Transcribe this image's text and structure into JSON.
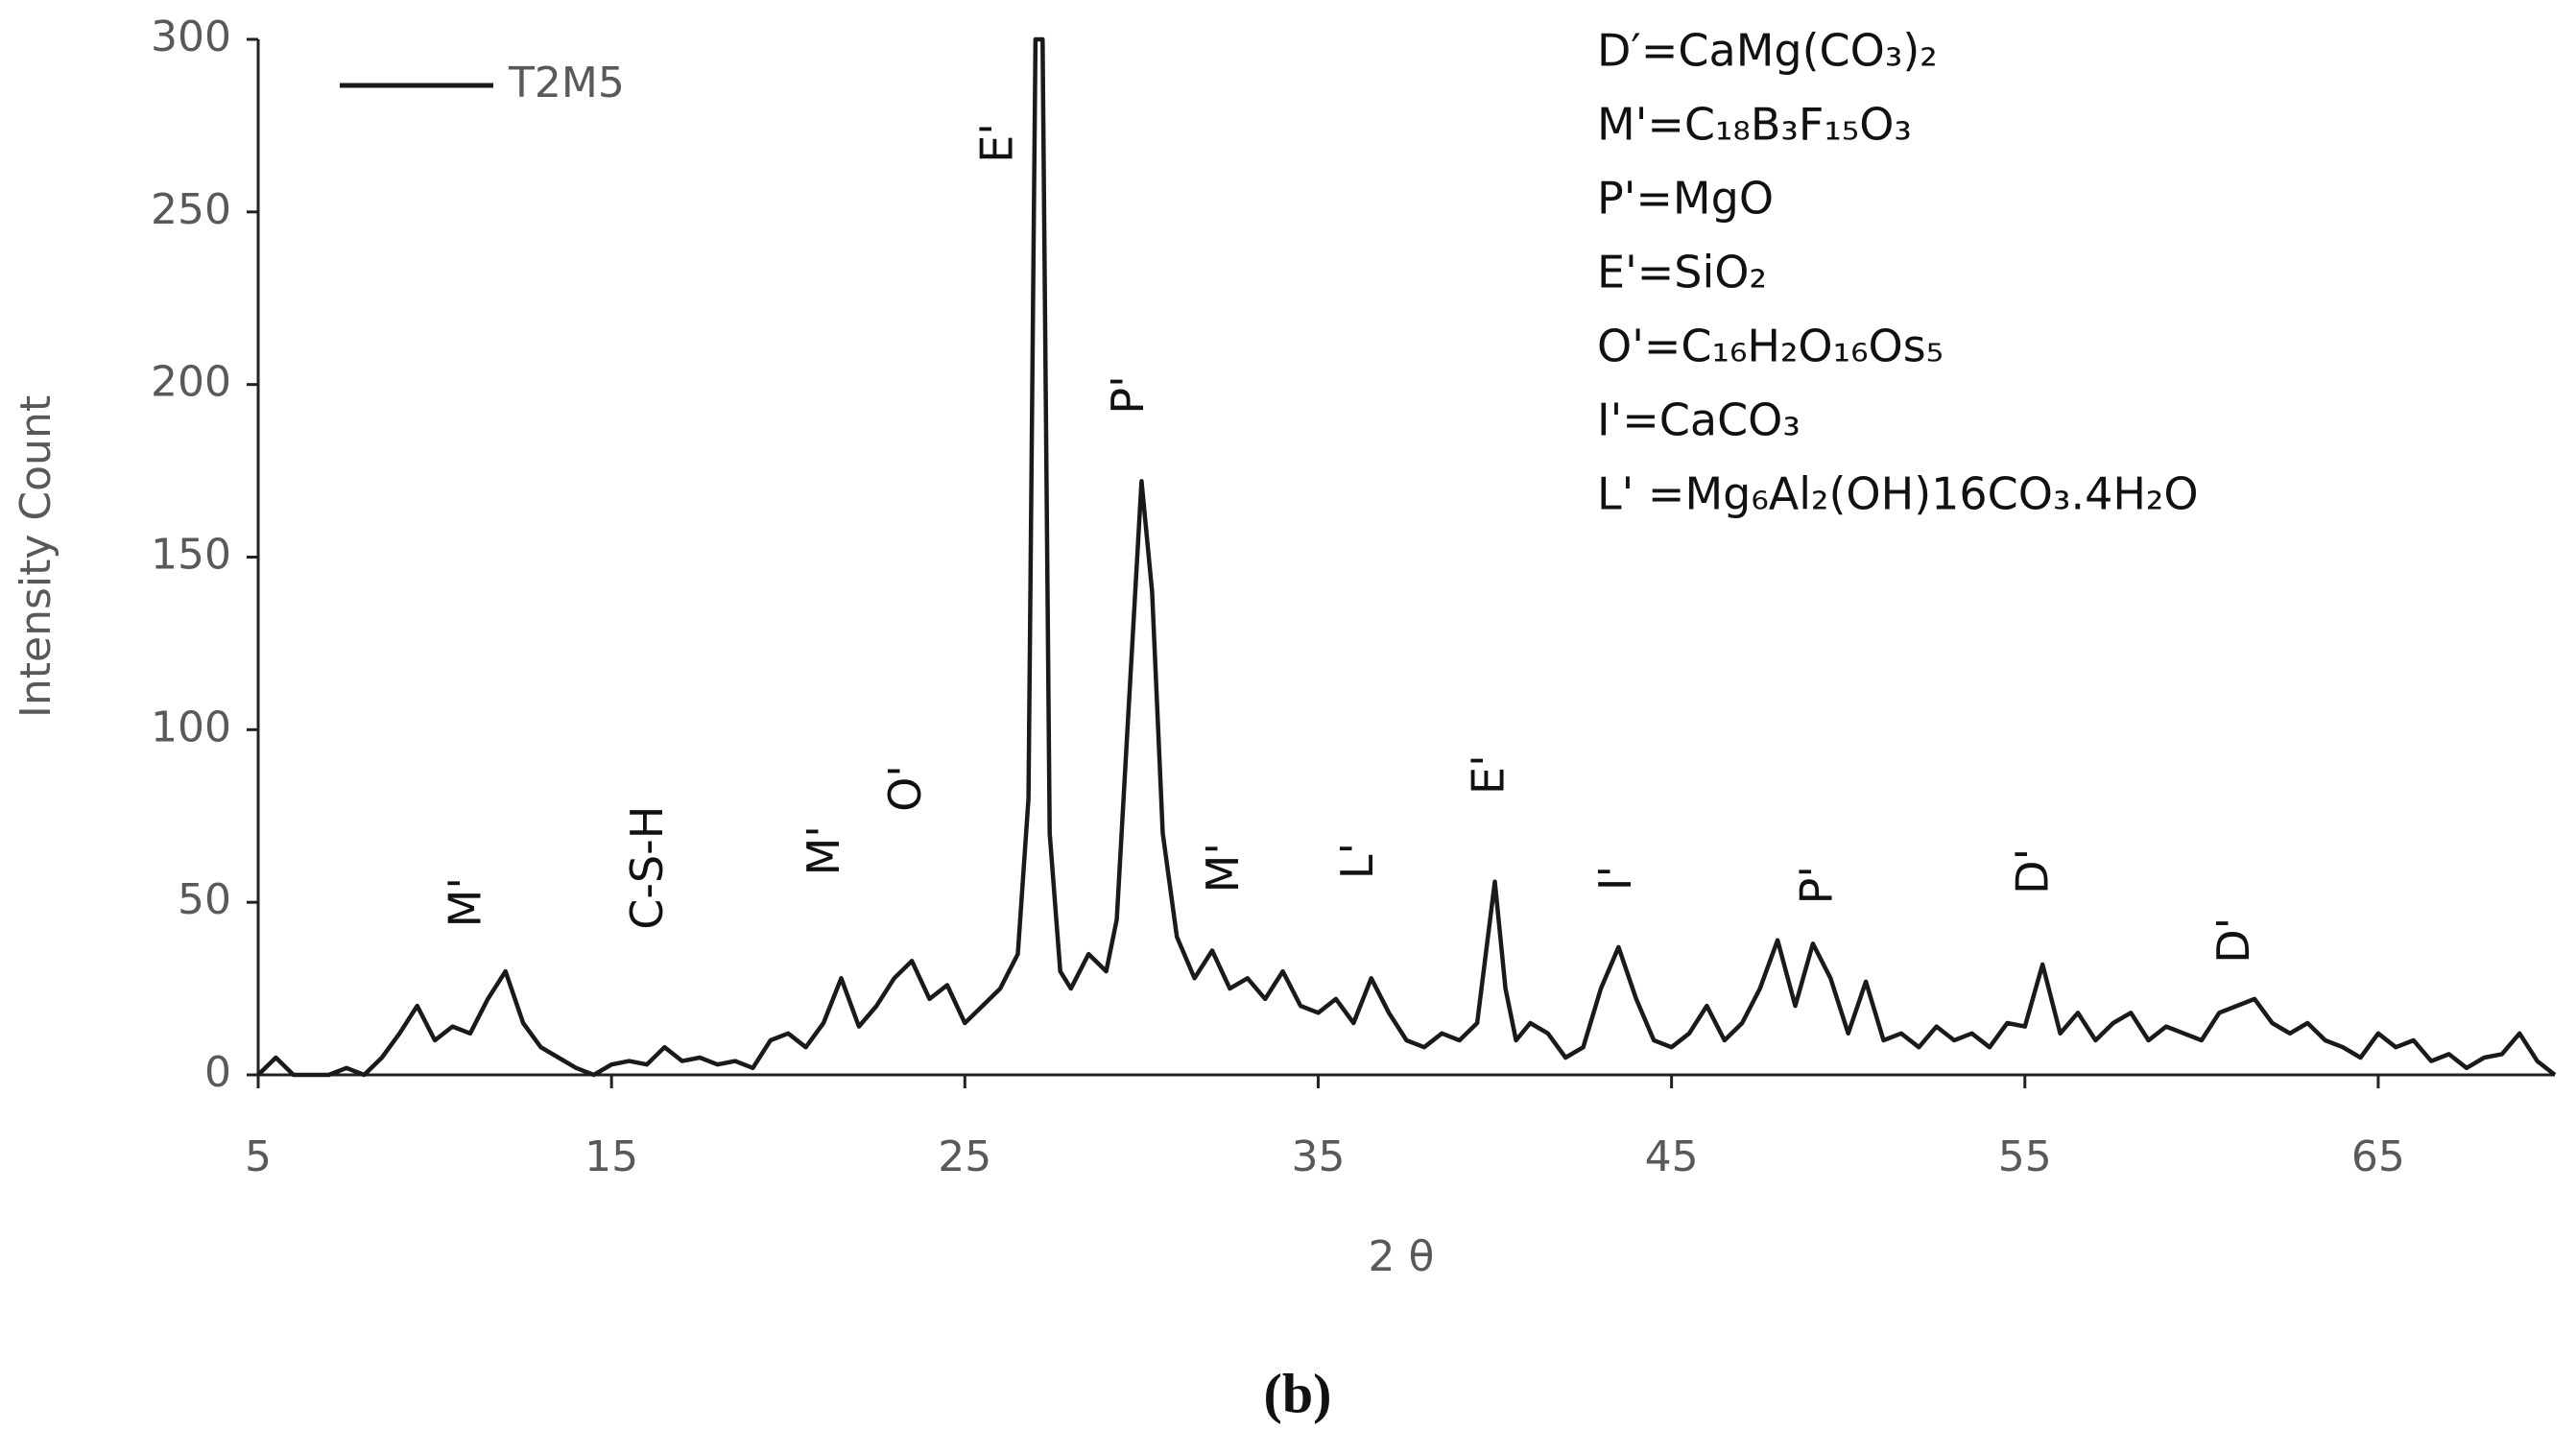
{
  "chart_data": {
    "type": "line",
    "x_label": "2 θ",
    "y_label": "Intensity Count",
    "caption": "(b)",
    "xlim": [
      5,
      70
    ],
    "xticks": [
      5,
      15,
      25,
      35,
      45,
      55,
      65
    ],
    "ylim": [
      0,
      300
    ],
    "yticks": [
      0,
      50,
      100,
      150,
      200,
      250,
      300
    ],
    "grid": false,
    "legend": "top-left",
    "x": [
      5,
      5.5,
      6,
      6.5,
      7,
      7.5,
      8,
      8.5,
      9,
      9.5,
      10,
      10.5,
      11,
      11.5,
      12,
      12.5,
      13,
      13.5,
      14,
      14.5,
      15,
      15.5,
      16,
      16.5,
      17,
      17.5,
      18,
      18.5,
      19,
      19.5,
      20,
      20.5,
      21,
      21.5,
      22,
      22.5,
      23,
      23.5,
      24,
      24.5,
      25,
      25.5,
      26,
      26.5,
      26.8,
      27,
      27.2,
      27.4,
      27.7,
      28,
      28.5,
      29,
      29.3,
      29.6,
      30,
      30.3,
      30.6,
      31,
      31.5,
      32,
      32.5,
      33,
      33.5,
      34,
      34.5,
      35,
      35.5,
      36,
      36.5,
      37,
      37.5,
      38,
      38.5,
      39,
      39.5,
      40,
      40.3,
      40.6,
      41,
      41.5,
      42,
      42.5,
      43,
      43.5,
      44,
      44.5,
      45,
      45.5,
      46,
      46.5,
      47,
      47.5,
      48,
      48.5,
      49,
      49.5,
      50,
      50.5,
      51,
      51.5,
      52,
      52.5,
      53,
      53.5,
      54,
      54.5,
      55,
      55.5,
      56,
      56.5,
      57,
      57.5,
      58,
      58.5,
      59,
      59.5,
      60,
      60.5,
      61,
      61.5,
      62,
      62.5,
      63,
      63.5,
      64,
      64.5,
      65,
      65.5,
      66,
      66.5,
      67,
      67.5,
      68,
      68.5,
      69,
      69.5,
      70
    ],
    "series": [
      {
        "name": "T2M5",
        "color": "#1a1a1a",
        "values": [
          0,
          5,
          0,
          0,
          0,
          2,
          0,
          5,
          12,
          20,
          10,
          14,
          12,
          22,
          30,
          15,
          8,
          5,
          2,
          0,
          3,
          4,
          3,
          8,
          4,
          5,
          3,
          4,
          2,
          10,
          12,
          8,
          15,
          28,
          14,
          20,
          28,
          33,
          22,
          26,
          15,
          20,
          25,
          35,
          80,
          300,
          300,
          70,
          30,
          25,
          35,
          30,
          45,
          100,
          172,
          140,
          70,
          40,
          28,
          36,
          25,
          28,
          22,
          30,
          20,
          18,
          22,
          15,
          28,
          18,
          10,
          8,
          12,
          10,
          15,
          56,
          25,
          10,
          15,
          12,
          5,
          8,
          25,
          37,
          22,
          10,
          8,
          12,
          20,
          10,
          15,
          25,
          39,
          20,
          38,
          28,
          12,
          27,
          10,
          12,
          8,
          14,
          10,
          12,
          8,
          15,
          14,
          32,
          12,
          18,
          10,
          15,
          18,
          10,
          14,
          12,
          10,
          18,
          20,
          22,
          15,
          12,
          15,
          10,
          8,
          5,
          12,
          8,
          10,
          4,
          6,
          2,
          5,
          6,
          12,
          4,
          0
        ]
      }
    ],
    "annotations": [
      {
        "text": "M'",
        "x": 10.95,
        "y": 50
      },
      {
        "text": "C-S-H",
        "x": 16.1,
        "y": 60
      },
      {
        "text": "M'",
        "x": 21.1,
        "y": 65
      },
      {
        "text": "O'",
        "x": 23.4,
        "y": 83
      },
      {
        "text": "E'",
        "x": 26.0,
        "y": 270
      },
      {
        "text": "P'",
        "x": 29.7,
        "y": 197
      },
      {
        "text": "M'",
        "x": 32.4,
        "y": 60
      },
      {
        "text": "L'",
        "x": 36.2,
        "y": 62
      },
      {
        "text": "E'",
        "x": 39.9,
        "y": 87
      },
      {
        "text": "I'",
        "x": 43.5,
        "y": 57
      },
      {
        "text": "P'",
        "x": 49.2,
        "y": 55
      },
      {
        "text": "D'",
        "x": 55.3,
        "y": 59
      },
      {
        "text": "D'",
        "x": 61.0,
        "y": 39
      }
    ],
    "key": [
      "D′=CaMg(CO₃)₂",
      "M'=C₁₈B₃F₁₅O₃",
      "P'=MgO",
      "E'=SiO₂",
      "O'=C₁₆H₂O₁₆Os₅",
      "I'=CaCO₃",
      "L' =Mg₆Al₂(OH)16CO₃.4H₂O"
    ]
  }
}
